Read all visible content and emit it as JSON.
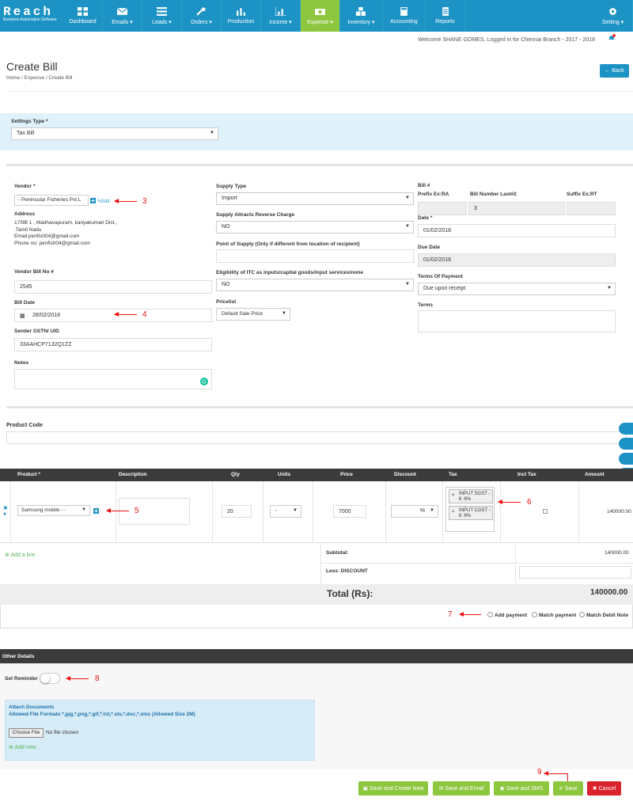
{
  "brand": {
    "name": "Reach",
    "tagline": "Business Automation Software"
  },
  "nav": {
    "items": [
      {
        "label": "Dashboard",
        "icon": "dashboard-icon"
      },
      {
        "label": "Emails ▾",
        "icon": "envelope-icon"
      },
      {
        "label": "Leads ▾",
        "icon": "list-icon"
      },
      {
        "label": "Orders ▾",
        "icon": "wrench-icon"
      },
      {
        "label": "Production",
        "icon": "bar-chart-icon"
      },
      {
        "label": "Income ▾",
        "icon": "chart-icon"
      },
      {
        "label": "Expense ▾",
        "icon": "money-icon"
      },
      {
        "label": "Inventory ▾",
        "icon": "cubes-icon"
      },
      {
        "label": "Accounting",
        "icon": "calculator-icon"
      },
      {
        "label": "Reports",
        "icon": "file-icon"
      }
    ],
    "setting": "Setting ▾"
  },
  "welcome": "Welcome SHANE GOMES, Logged in for Chennai Branch - 2017 - 2018",
  "page": {
    "title": "Create Bill",
    "breadcrumb": [
      "Home",
      "Expense",
      "Create Bill"
    ],
    "back": "Back"
  },
  "settings": {
    "label": "Settings Type *",
    "value": "Tax Bill"
  },
  "vendor": {
    "label": "Vendor *",
    "value": "- Peninsular Fisheries Pvt.L",
    "edit": "Edit",
    "address_label": "Address",
    "address_lines": [
      "17/9B 1 , Madhavapuram, kanyakumari Dist.,",
      ".Tamil Nadu",
      "Email:penfish04@gmail.com",
      "Phone no: penfish04@gmail.com"
    ],
    "bill_no_label": "Vendor Bill No #",
    "bill_no": "2545",
    "bill_date_label": "Bill Date",
    "bill_date": "28/02/2018",
    "gstn_label": "Sender GSTN/ UID",
    "gstn": "33AAHCP7132Q1ZZ",
    "notes_label": "Notes"
  },
  "supply": {
    "type_label": "Supply Type",
    "type": "Import",
    "reverse_label": "Supply Attracts Reverse Charge",
    "reverse": "NO",
    "pos_label": "Point of Supply (Only if different from location of recipient)",
    "itc_label": "Eligibility of ITC as inputs/capital goods/input services/none",
    "itc": "NO",
    "pricelist_label": "Pricelist",
    "pricelist": "Default Sale Price"
  },
  "bill": {
    "label": "Bill #",
    "prefix_label": "Prefix Ex:RA",
    "number_label": "Bill Number Last#2",
    "suffix_label": "Suffix Ex:RT",
    "number": "3",
    "date_label": "Date *",
    "date": "01/02/2018",
    "due_label": "Due Date",
    "due": "01/02/2018",
    "terms_pay_label": "Terms Of Payment",
    "terms_pay": "Due upon receipt",
    "terms_label": "Terms"
  },
  "product_code_label": "Product Code",
  "table": {
    "headers": [
      "Product *",
      "Description",
      "Qty",
      "Units",
      "Price",
      "Discount",
      "Tax",
      "Incl Tax",
      "Amount"
    ],
    "row": {
      "product": "Samsung mobile - -",
      "qty": "20",
      "units": "-",
      "price": "7000",
      "discount_unit": "%",
      "taxes": [
        "INPUT SGST - 6 :6%",
        "INPUT CGST - 6 :6%"
      ],
      "amount": "140000.00"
    }
  },
  "add_line": "Add a line",
  "subtotal_label": "Subtotal:",
  "subtotal": "140000.00",
  "less_label": "Less: DISCOUNT",
  "total_label": "Total (Rs):",
  "total": "140000.00",
  "payment_options": [
    "Add payment",
    "Match payment",
    "Match Debit Note"
  ],
  "other": {
    "title": "Other Details",
    "reminder": "Set Reminder",
    "attach_title": "Attach Documents",
    "attach_formats": "Allowed File Formats *.jpg,*.png,*.gif,*.txt,*.xls,*.doc,*.xlsx (Allowed Size 2M)",
    "choose": "Choose File",
    "no_file": "No file chosen",
    "add_new": "Add new"
  },
  "buttons": {
    "save_new": "Save and Create New",
    "save_email": "Save and Email",
    "save_sms": "Save and SMS",
    "save": "Save",
    "cancel": "Cancel"
  },
  "annotations": [
    "3",
    "4",
    "5",
    "6",
    "7",
    "8",
    "9"
  ]
}
